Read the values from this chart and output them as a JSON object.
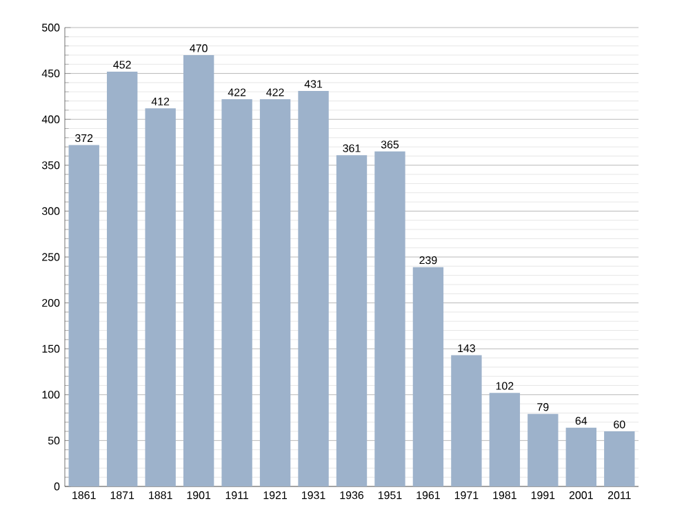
{
  "chart_data": {
    "type": "bar",
    "categories": [
      "1861",
      "1871",
      "1881",
      "1901",
      "1911",
      "1921",
      "1931",
      "1936",
      "1951",
      "1961",
      "1971",
      "1981",
      "1991",
      "2001",
      "2011"
    ],
    "values": [
      372,
      452,
      412,
      470,
      422,
      422,
      431,
      361,
      365,
      239,
      143,
      102,
      79,
      64,
      60
    ],
    "color": "#9db2cb",
    "ylim": [
      0,
      500
    ],
    "yticks": [
      0,
      50,
      100,
      150,
      200,
      250,
      300,
      350,
      400,
      450,
      500
    ],
    "grid": "y",
    "data_labels": true
  }
}
